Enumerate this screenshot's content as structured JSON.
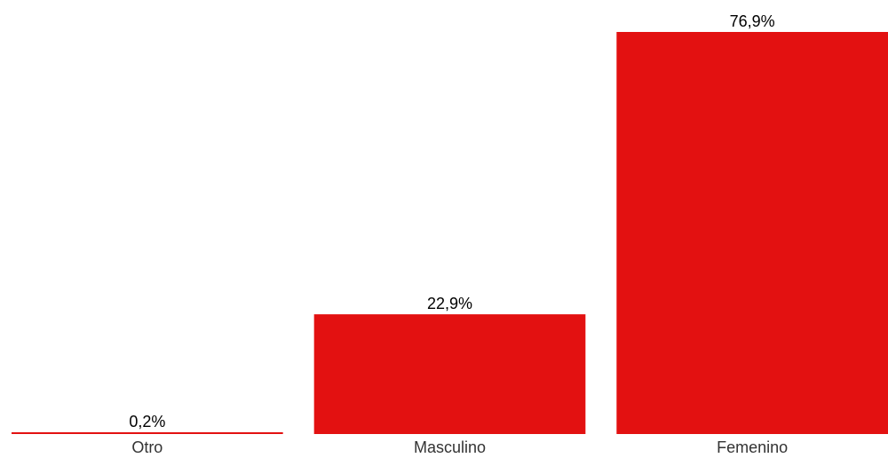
{
  "chart_data": {
    "type": "bar",
    "categories": [
      "Otro",
      "Masculino",
      "Femenino"
    ],
    "values": [
      0.2,
      22.9,
      76.9
    ],
    "value_labels": [
      "0,2%",
      "22,9%",
      "76,9%"
    ],
    "ylim": [
      0,
      76.9
    ],
    "grid": false,
    "bar_color": "#E31111"
  }
}
